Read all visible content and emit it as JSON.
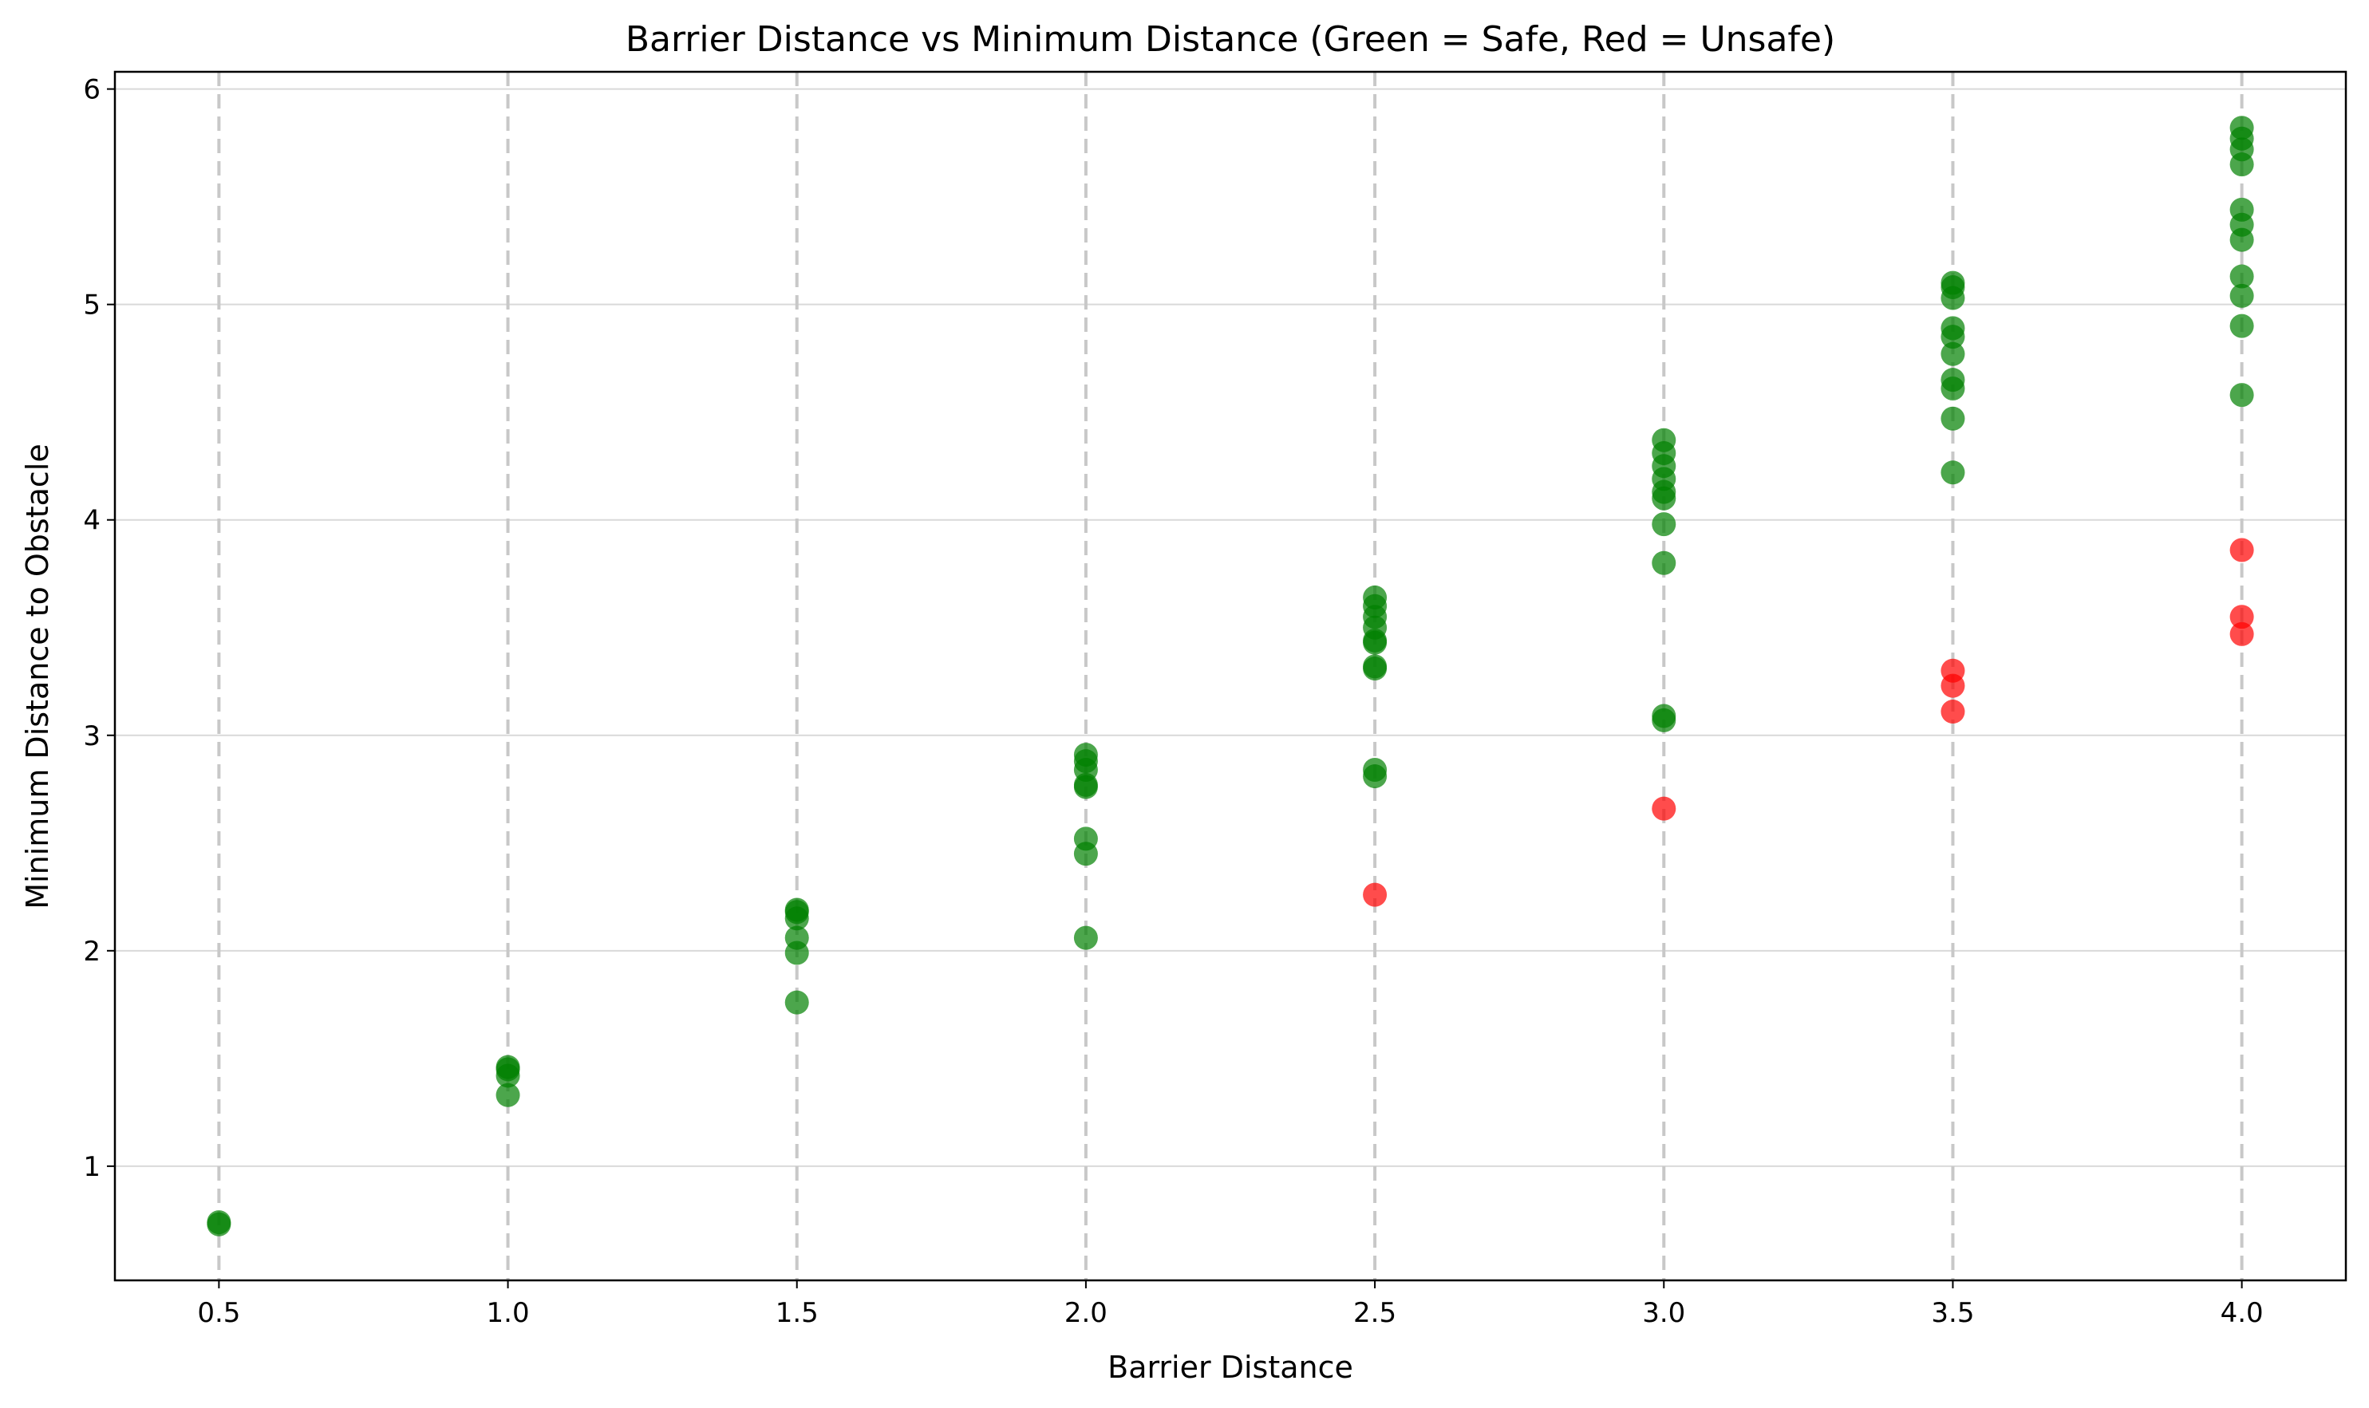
{
  "chart_data": {
    "type": "scatter",
    "title": "Barrier Distance vs Minimum Distance (Green = Safe, Red = Unsafe)",
    "xlabel": "Barrier Distance",
    "ylabel": "Minimum Distance to Obstacle",
    "xlim": [
      0.32,
      4.18
    ],
    "ylim": [
      0.47,
      6.08
    ],
    "xticks": [
      "0.5",
      "1.0",
      "1.5",
      "2.0",
      "2.5",
      "3.0",
      "3.5",
      "4.0"
    ],
    "yticks": [
      "1",
      "2",
      "3",
      "4",
      "5",
      "6"
    ],
    "grid": true,
    "colors": {
      "safe": "#008000",
      "unsafe": "#ff0000",
      "grid": "#d9d9d9",
      "vline": "#c8c8c8"
    },
    "series": [
      {
        "color": "safe",
        "points": [
          {
            "x": 0.5,
            "y": 0.73
          },
          {
            "x": 0.5,
            "y": 0.74
          },
          {
            "x": 1.0,
            "y": 1.33
          },
          {
            "x": 1.0,
            "y": 1.42
          },
          {
            "x": 1.0,
            "y": 1.45
          },
          {
            "x": 1.0,
            "y": 1.46
          },
          {
            "x": 1.5,
            "y": 1.76
          },
          {
            "x": 1.5,
            "y": 1.99
          },
          {
            "x": 1.5,
            "y": 2.06
          },
          {
            "x": 1.5,
            "y": 2.15
          },
          {
            "x": 1.5,
            "y": 2.18
          },
          {
            "x": 1.5,
            "y": 2.19
          },
          {
            "x": 2.0,
            "y": 2.06
          },
          {
            "x": 2.0,
            "y": 2.45
          },
          {
            "x": 2.0,
            "y": 2.52
          },
          {
            "x": 2.0,
            "y": 2.76
          },
          {
            "x": 2.0,
            "y": 2.77
          },
          {
            "x": 2.0,
            "y": 2.84
          },
          {
            "x": 2.0,
            "y": 2.88
          },
          {
            "x": 2.0,
            "y": 2.91
          },
          {
            "x": 2.5,
            "y": 2.81
          },
          {
            "x": 2.5,
            "y": 2.84
          },
          {
            "x": 2.5,
            "y": 3.31
          },
          {
            "x": 2.5,
            "y": 3.32
          },
          {
            "x": 2.5,
            "y": 3.43
          },
          {
            "x": 2.5,
            "y": 3.44
          },
          {
            "x": 2.5,
            "y": 3.5
          },
          {
            "x": 2.5,
            "y": 3.55
          },
          {
            "x": 2.5,
            "y": 3.6
          },
          {
            "x": 2.5,
            "y": 3.64
          },
          {
            "x": 3.0,
            "y": 3.07
          },
          {
            "x": 3.0,
            "y": 3.09
          },
          {
            "x": 3.0,
            "y": 3.8
          },
          {
            "x": 3.0,
            "y": 3.98
          },
          {
            "x": 3.0,
            "y": 4.1
          },
          {
            "x": 3.0,
            "y": 4.13
          },
          {
            "x": 3.0,
            "y": 4.19
          },
          {
            "x": 3.0,
            "y": 4.25
          },
          {
            "x": 3.0,
            "y": 4.31
          },
          {
            "x": 3.0,
            "y": 4.37
          },
          {
            "x": 3.5,
            "y": 4.22
          },
          {
            "x": 3.5,
            "y": 4.47
          },
          {
            "x": 3.5,
            "y": 4.61
          },
          {
            "x": 3.5,
            "y": 4.65
          },
          {
            "x": 3.5,
            "y": 4.77
          },
          {
            "x": 3.5,
            "y": 4.85
          },
          {
            "x": 3.5,
            "y": 4.89
          },
          {
            "x": 3.5,
            "y": 5.03
          },
          {
            "x": 3.5,
            "y": 5.08
          },
          {
            "x": 3.5,
            "y": 5.1
          },
          {
            "x": 4.0,
            "y": 4.58
          },
          {
            "x": 4.0,
            "y": 4.9
          },
          {
            "x": 4.0,
            "y": 5.04
          },
          {
            "x": 4.0,
            "y": 5.13
          },
          {
            "x": 4.0,
            "y": 5.3
          },
          {
            "x": 4.0,
            "y": 5.37
          },
          {
            "x": 4.0,
            "y": 5.44
          },
          {
            "x": 4.0,
            "y": 5.65
          },
          {
            "x": 4.0,
            "y": 5.72
          },
          {
            "x": 4.0,
            "y": 5.77
          },
          {
            "x": 4.0,
            "y": 5.82
          }
        ]
      },
      {
        "color": "unsafe",
        "points": [
          {
            "x": 2.5,
            "y": 2.26
          },
          {
            "x": 3.0,
            "y": 2.66
          },
          {
            "x": 3.5,
            "y": 3.11
          },
          {
            "x": 3.5,
            "y": 3.23
          },
          {
            "x": 3.5,
            "y": 3.3
          },
          {
            "x": 4.0,
            "y": 3.47
          },
          {
            "x": 4.0,
            "y": 3.55
          },
          {
            "x": 4.0,
            "y": 3.86
          }
        ]
      }
    ]
  }
}
